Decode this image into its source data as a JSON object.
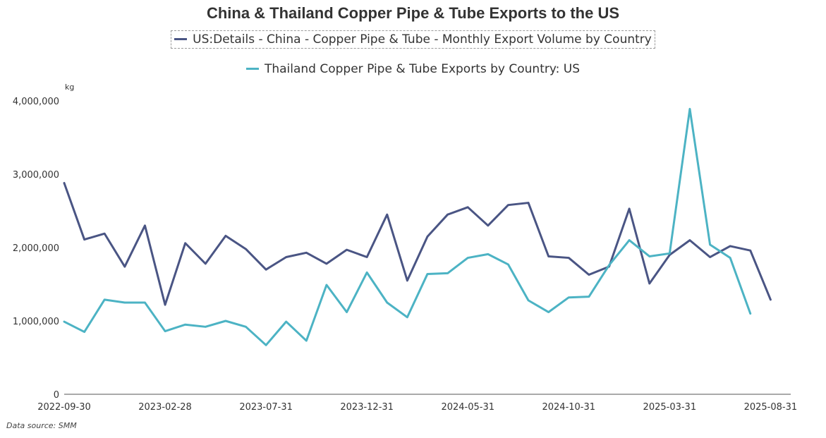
{
  "chart_data": {
    "type": "line",
    "title": "China & Thailand Copper Pipe & Tube Exports to the US",
    "ylabel": "kg",
    "ylim": [
      0,
      4000000
    ],
    "yticks": [
      0,
      1000000,
      2000000,
      3000000,
      4000000
    ],
    "ytick_labels": [
      "0",
      "1,000,000",
      "2,000,000",
      "3,000,000",
      "4,000,000"
    ],
    "x": [
      "2022-09-30",
      "2022-10-31",
      "2022-11-30",
      "2022-12-31",
      "2023-01-31",
      "2023-02-28",
      "2023-03-31",
      "2023-04-30",
      "2023-05-31",
      "2023-06-30",
      "2023-07-31",
      "2023-08-31",
      "2023-09-30",
      "2023-10-31",
      "2023-11-30",
      "2023-12-31",
      "2024-01-31",
      "2024-02-29",
      "2024-03-31",
      "2024-04-30",
      "2024-05-31",
      "2024-06-30",
      "2024-07-31",
      "2024-08-31",
      "2024-09-30",
      "2024-10-31",
      "2024-11-30",
      "2024-12-31",
      "2025-01-31",
      "2025-02-28",
      "2025-03-31",
      "2025-04-30",
      "2025-05-31",
      "2025-06-30",
      "2025-07-31",
      "2025-08-31",
      "2025-09-30"
    ],
    "xtick_labels": [
      "2022-09-30",
      "2023-02-28",
      "2023-07-31",
      "2023-12-31",
      "2024-05-31",
      "2024-10-31",
      "2025-03-31",
      "2025-08-31"
    ],
    "series": [
      {
        "name": "US:Details - China - Copper Pipe & Tube - Monthly Export Volume by Country",
        "color": "#4a5584",
        "values": [
          2880000,
          2110000,
          2190000,
          1740000,
          2300000,
          1220000,
          2060000,
          1780000,
          2160000,
          1980000,
          1700000,
          1870000,
          1930000,
          1780000,
          1970000,
          1870000,
          2450000,
          1550000,
          2150000,
          2450000,
          2550000,
          2300000,
          2580000,
          2610000,
          1880000,
          1860000,
          1630000,
          1740000,
          2530000,
          1510000,
          1900000,
          2100000,
          1870000,
          2020000,
          1960000,
          1290000,
          null
        ]
      },
      {
        "name": "Thailand Copper Pipe & Tube Exports by Country: US",
        "color": "#4cb3c4",
        "values": [
          990000,
          850000,
          1290000,
          1250000,
          1250000,
          860000,
          950000,
          920000,
          1000000,
          920000,
          670000,
          990000,
          730000,
          1490000,
          1120000,
          1660000,
          1250000,
          1050000,
          1640000,
          1650000,
          1860000,
          1910000,
          1770000,
          1280000,
          1120000,
          1320000,
          1330000,
          1760000,
          2100000,
          1880000,
          1920000,
          3890000,
          2040000,
          1860000,
          1100000,
          null,
          null
        ]
      }
    ],
    "legend_position": "top-center",
    "grid": false
  },
  "footer": {
    "source": "Data source:  SMM"
  }
}
